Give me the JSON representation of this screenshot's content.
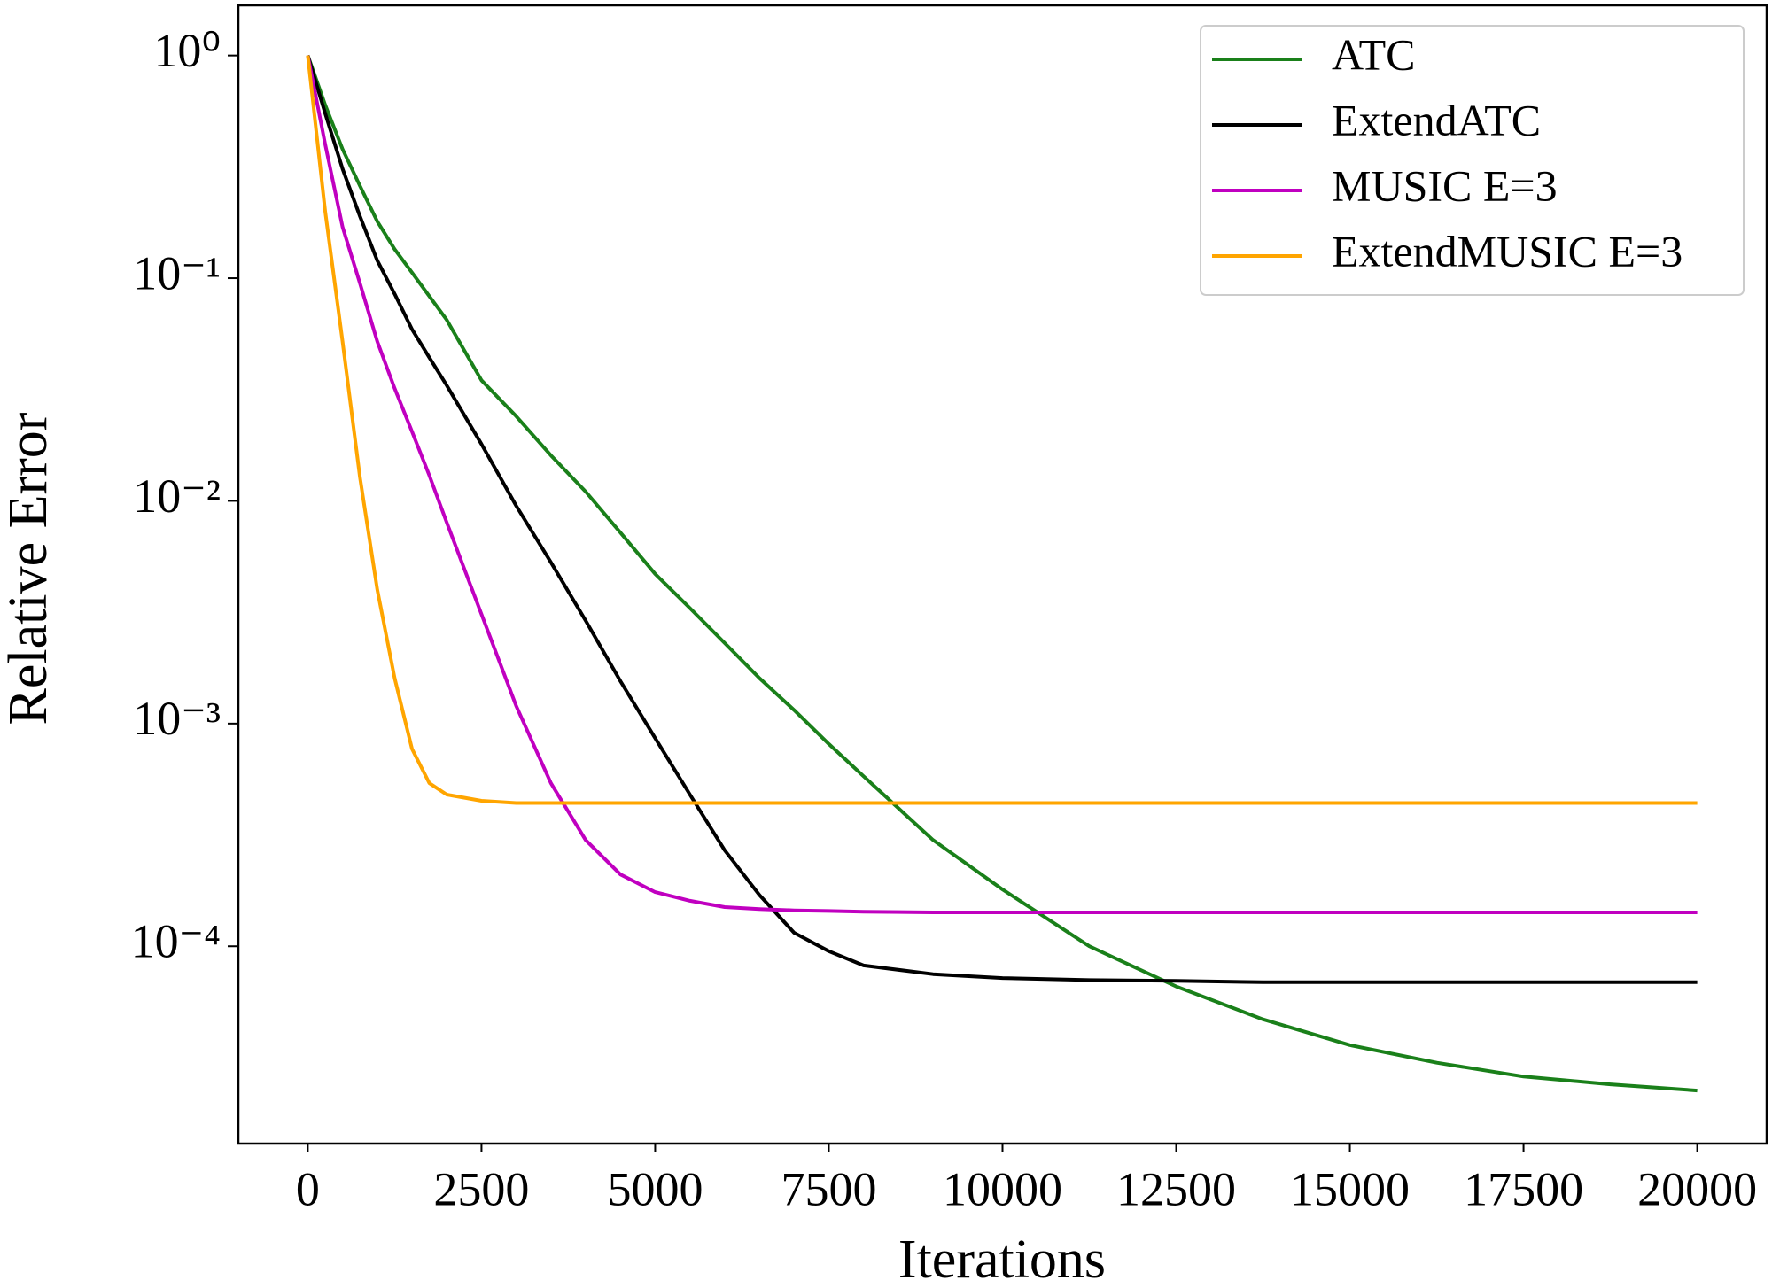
{
  "chart_data": {
    "type": "line",
    "x_label": "Iterations",
    "y_label": "Relative Error",
    "x": [
      0,
      250,
      500,
      750,
      1000,
      1250,
      1500,
      1750,
      2000,
      2500,
      3000,
      3500,
      4000,
      4500,
      5000,
      5500,
      6000,
      6500,
      7000,
      7500,
      8000,
      9000,
      10000,
      11250,
      12500,
      13750,
      15000,
      16250,
      17500,
      18750,
      20000
    ],
    "series": [
      {
        "name": "ATC",
        "color": "#1a801a",
        "values": [
          1,
          0.6,
          0.38,
          0.26,
          0.18,
          0.135,
          0.106,
          0.083,
          0.065,
          0.0348,
          0.024,
          0.016,
          0.011,
          0.0072,
          0.0047,
          0.0033,
          0.0023,
          0.0016,
          0.00115,
          0.00081,
          0.00058,
          0.0003,
          0.00018,
          0.0001,
          6.6e-05,
          4.7e-05,
          3.6e-05,
          3e-05,
          2.6e-05,
          2.4e-05,
          2.25e-05
        ]
      },
      {
        "name": "ExtendATC",
        "color": "#000000",
        "values": [
          1,
          0.55,
          0.31,
          0.19,
          0.12,
          0.085,
          0.059,
          0.044,
          0.033,
          0.018,
          0.0095,
          0.0053,
          0.0029,
          0.00155,
          0.00086,
          0.00048,
          0.00027,
          0.00017,
          0.000115,
          9.5e-05,
          8.2e-05,
          7.5e-05,
          7.2e-05,
          7.05e-05,
          7e-05,
          6.9e-05,
          6.9e-05,
          6.9e-05,
          6.9e-05,
          6.9e-05,
          6.9e-05
        ]
      },
      {
        "name": "MUSIC E=3",
        "color": "#c000c0",
        "values": [
          1,
          0.4,
          0.17,
          0.095,
          0.052,
          0.032,
          0.0205,
          0.013,
          0.008,
          0.0031,
          0.0012,
          0.00054,
          0.0003,
          0.00021,
          0.000175,
          0.00016,
          0.00015,
          0.000147,
          0.000145,
          0.000144,
          0.000143,
          0.000142,
          0.000142,
          0.000142,
          0.000142,
          0.000142,
          0.000142,
          0.000142,
          0.000142,
          0.000142,
          0.000142
        ]
      },
      {
        "name": "ExtendMUSIC E=3",
        "color": "#ffa500",
        "values": [
          1,
          0.2,
          0.052,
          0.0128,
          0.004,
          0.0016,
          0.00077,
          0.00054,
          0.00048,
          0.00045,
          0.00044,
          0.00044,
          0.00044,
          0.00044,
          0.00044,
          0.00044,
          0.00044,
          0.00044,
          0.00044,
          0.00044,
          0.00044,
          0.00044,
          0.00044,
          0.00044,
          0.00044,
          0.00044,
          0.00044,
          0.00044,
          0.00044,
          0.00044,
          0.00044
        ]
      }
    ],
    "xlim": [
      -1000,
      21000
    ],
    "xticks": [
      0,
      2500,
      5000,
      7500,
      10000,
      12500,
      15000,
      17500,
      20000
    ],
    "ylim": [
      1.3e-05,
      1.68
    ],
    "y_log": true,
    "yticks": [
      {
        "value": 1,
        "label": "10⁰"
      },
      {
        "value": 0.1,
        "label": "10⁻¹"
      },
      {
        "value": 0.01,
        "label": "10⁻²"
      },
      {
        "value": 0.001,
        "label": "10⁻³"
      },
      {
        "value": 0.0001,
        "label": "10⁻⁴"
      }
    ],
    "grid": false,
    "legend": "upper right"
  }
}
